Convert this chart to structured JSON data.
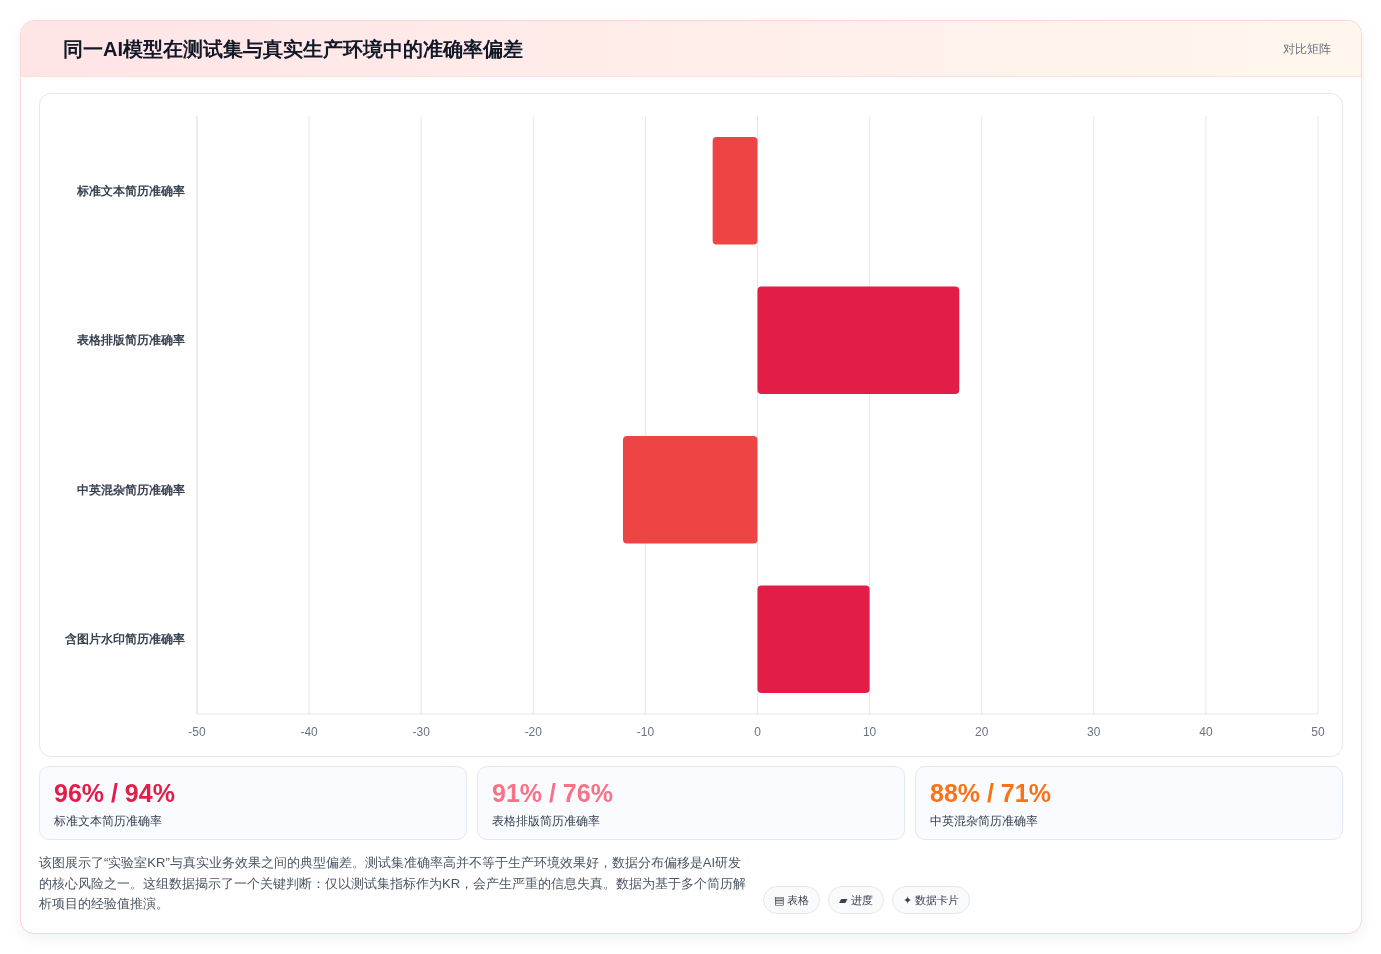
{
  "chart_data": {
    "type": "bar",
    "orientation": "horizontal",
    "title": "同一AI模型在测试集与真实生产环境中的准确率偏差",
    "categories": [
      "标准文本简历准确率",
      "表格排版简历准确率",
      "中英混杂简历准确率",
      "含图片水印简历准确率"
    ],
    "values": [
      -4,
      18,
      -12,
      10
    ],
    "colors": [
      "#ef4444",
      "#e11d48",
      "#ef4444",
      "#e11d48"
    ],
    "xlim": [
      -50,
      50
    ],
    "xticks": [
      -50,
      -40,
      -30,
      -20,
      -10,
      0,
      10,
      20,
      30,
      40,
      50
    ],
    "grid": "x",
    "annotations": [
      "对比矩阵",
      "96% / 94%",
      "标准文本简历准确率",
      "91% / 76%",
      "表格排版简历准确率",
      "88% / 71%",
      "中英混杂简历准确率",
      "该图展示了“实验室KR”与真实业务效果之间的典型偏差。测试集准确率高并不等于生产环境效果好，数据分布偏移是AI研发的核心风险之一。这组数据揭示了一个关键判断：仅以测试集指标作为KR，会产生严重的信息失真。数据为基于多个简历解析项目的经验值推演。",
      "▤ 表格",
      "▰ 进度",
      "✦ 数据卡片"
    ]
  }
}
